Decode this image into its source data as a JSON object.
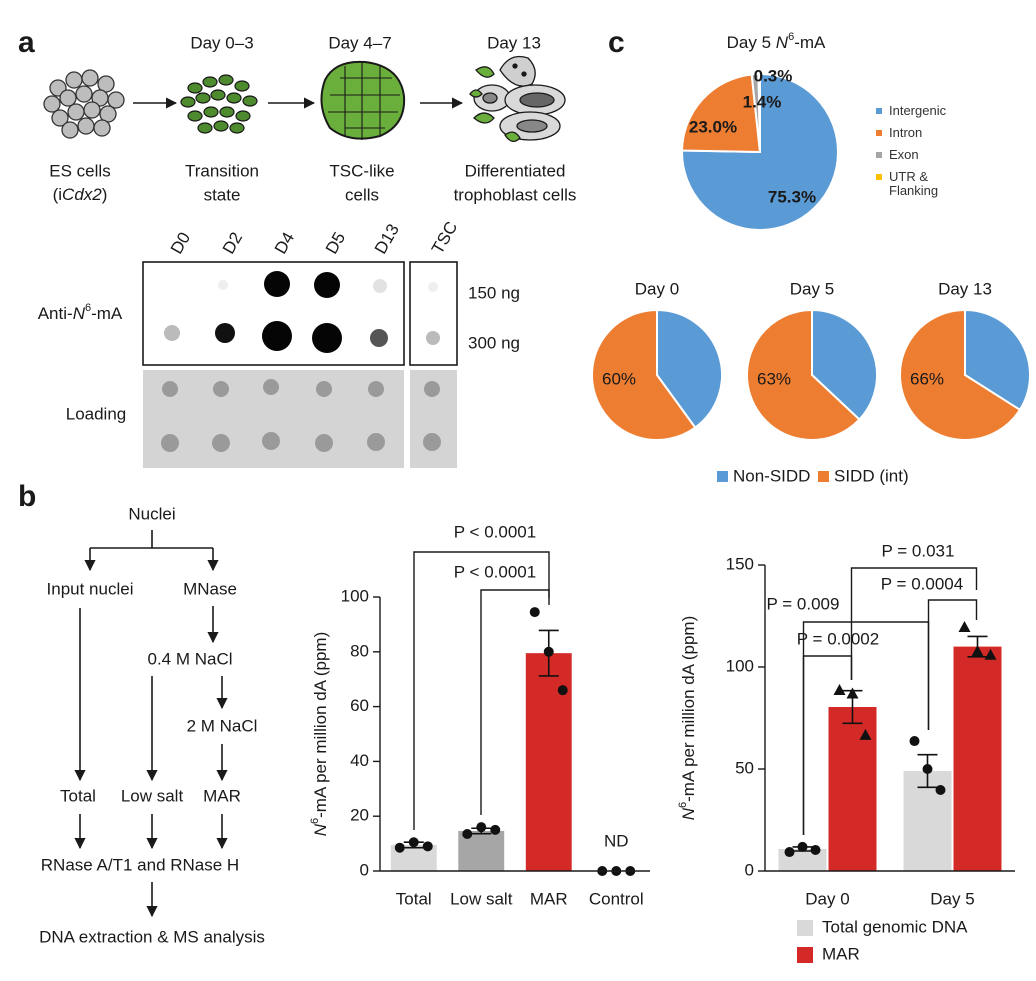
{
  "panel_labels": [
    "a",
    "b",
    "c"
  ],
  "panel_a": {
    "days": [
      "Day 0–3",
      "Day 4–7",
      "Day 13"
    ],
    "stages": [
      {
        "lines": [
          [
            "ES cells"
          ],
          [
            "(i",
            "Cdx2",
            ")"
          ]
        ]
      },
      {
        "lines": [
          [
            "Transition"
          ],
          [
            "state"
          ]
        ]
      },
      {
        "lines": [
          [
            "TSC-like"
          ],
          [
            "cells"
          ]
        ]
      },
      {
        "lines": [
          [
            "Differentiated"
          ],
          [
            "trophoblast cells"
          ]
        ]
      }
    ],
    "blot": {
      "lanes": [
        "D0",
        "D2",
        "D4",
        "D5",
        "D13",
        "TSC"
      ],
      "rows": [
        [
          "Anti-",
          "N",
          "6",
          "-mA"
        ],
        [
          "Loading"
        ]
      ],
      "amounts": [
        "150 ng",
        "300 ng"
      ]
    }
  },
  "panel_b": {
    "flow": {
      "nuclei": "Nuclei",
      "input": "Input nuclei",
      "mnase": "MNase",
      "salt04": "0.4 M NaCl",
      "salt2": "2 M NaCl",
      "total": "Total",
      "low": "Low salt",
      "mar": "MAR",
      "rnase": "RNase A/T1 and RNase H",
      "dna": "DNA extraction & MS analysis"
    }
  },
  "chart_data": [
    {
      "type": "pie",
      "title": [
        "Day 5 ",
        "N",
        "6",
        "-mA"
      ],
      "categories": [
        "Intergenic",
        "Intron",
        "Exon",
        "UTR & Flanking"
      ],
      "values": [
        75.3,
        23.0,
        1.4,
        0.3
      ],
      "value_labels": [
        "75.3%",
        "23.0%",
        "1.4%",
        "0.3%"
      ],
      "colors": [
        "#5b9bd5",
        "#ed7d31",
        "#a5a5a5",
        "#ffc000"
      ]
    },
    {
      "type": "pie",
      "categories": [
        "Non-SIDD",
        "SIDD (int)"
      ],
      "colors": [
        "#5b9bd5",
        "#ed7d31"
      ],
      "pies": [
        {
          "title": "Day 0",
          "values": [
            40,
            60
          ],
          "value_labels": [
            null,
            "60%"
          ]
        },
        {
          "title": "Day 5",
          "values": [
            37,
            63
          ],
          "value_labels": [
            null,
            "63%"
          ]
        },
        {
          "title": "Day 13",
          "values": [
            34,
            66
          ],
          "value_labels": [
            null,
            "66%"
          ]
        }
      ]
    },
    {
      "type": "bar",
      "ylabel": [
        "N",
        "6",
        "-mA per million dA (ppm)"
      ],
      "categories": [
        "Total",
        "Low salt",
        "MAR",
        "Control"
      ],
      "values": [
        9.5,
        14.6,
        79.5,
        0
      ],
      "value_labels": [
        null,
        null,
        null,
        "ND"
      ],
      "errors": [
        1,
        1,
        8.3,
        0
      ],
      "points": [
        [
          8.5,
          10.5,
          9
        ],
        [
          13.5,
          16,
          15
        ],
        [
          94.5,
          80,
          66
        ],
        [
          0,
          0,
          0
        ]
      ],
      "colors": [
        "#d9d9d9",
        "#a6a6a6",
        "#d42a27",
        "#ffffff"
      ],
      "ylim": [
        0,
        100
      ],
      "yticks": [
        0,
        20,
        40,
        60,
        80,
        100
      ],
      "annotations": [
        "P < 0.0001",
        "P < 0.0001"
      ]
    },
    {
      "type": "bar",
      "ylabel": [
        "N",
        "6",
        "-mA per million dA (ppm)"
      ],
      "categories": [
        "Day 0",
        "Day 5"
      ],
      "series": [
        {
          "name": "Total genomic DNA",
          "color": "#d9d9d9",
          "marker": "circle",
          "values": [
            10.8,
            49
          ],
          "errors": [
            1,
            8
          ],
          "points": [
            [
              9.3,
              11.8,
              10.3
            ],
            [
              63.7,
              50,
              39.7
            ]
          ]
        },
        {
          "name": "MAR",
          "color": "#d42a27",
          "marker": "triangle",
          "values": [
            80.4,
            110
          ],
          "errors": [
            8,
            5
          ],
          "points": [
            [
              88.7,
              87,
              66.7
            ],
            [
              119.6,
              107.8,
              106
            ]
          ]
        }
      ],
      "ylim": [
        0,
        150
      ],
      "yticks": [
        0,
        50,
        100,
        150
      ],
      "legend": "bottom",
      "annotations": [
        "P = 0.031",
        "P = 0.0004",
        "P = 0.009",
        "P = 0.0002"
      ]
    }
  ]
}
